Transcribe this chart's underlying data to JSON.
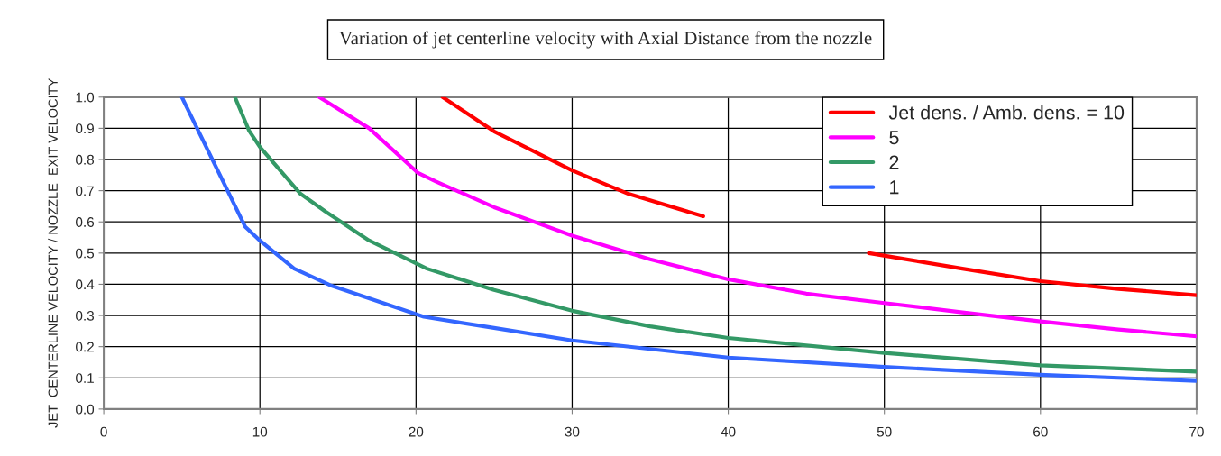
{
  "chart_data": {
    "type": "line",
    "title": "Variation of jet centerline velocity with Axial Distance from the nozzle",
    "ylabel": "JET  CENTERLINE VELOCITY / NOZZLE  EXIT VELOCITY",
    "series": [
      {
        "name": "Jet dens. / Amb. dens. = 10",
        "color": "#ff0000",
        "x": [
          21.7,
          25,
          30,
          33.6,
          38.4,
          43,
          49,
          55,
          60,
          65,
          70
        ],
        "values": [
          1.0,
          0.89,
          0.765,
          0.69,
          0.618,
          null,
          0.5,
          0.45,
          0.41,
          0.385,
          0.365
        ]
      },
      {
        "name": "5",
        "color": "#ff00ff",
        "x": [
          13.8,
          17,
          20.1,
          21.3,
          25,
          30,
          35,
          40,
          45,
          50,
          55,
          60,
          65,
          70
        ],
        "values": [
          1.0,
          0.9,
          0.758,
          0.729,
          0.647,
          0.556,
          0.48,
          0.416,
          0.37,
          0.34,
          0.31,
          0.281,
          0.255,
          0.233
        ]
      },
      {
        "name": "2",
        "color": "#339966",
        "x": [
          8.4,
          9.3,
          10,
          12.6,
          14.2,
          17,
          20.7,
          25,
          30,
          35,
          40,
          50,
          60,
          70
        ],
        "values": [
          1.0,
          0.893,
          0.84,
          0.69,
          0.633,
          0.54,
          0.45,
          0.382,
          0.315,
          0.265,
          0.228,
          0.18,
          0.14,
          0.12
        ]
      },
      {
        "name": "1",
        "color": "#3366ff",
        "x": [
          5.0,
          9.05,
          10,
          12.2,
          14.5,
          20.5,
          25,
          30,
          40,
          50,
          60,
          70
        ],
        "values": [
          1.0,
          0.585,
          0.54,
          0.45,
          0.397,
          0.296,
          0.26,
          0.22,
          0.165,
          0.135,
          0.11,
          0.09
        ]
      }
    ],
    "xlim": [
      0,
      70
    ],
    "xticks": [
      0,
      10,
      20,
      30,
      40,
      50,
      60,
      70
    ],
    "ylim": [
      0.0,
      1.0
    ],
    "yticks": [
      {
        "value": 0,
        "label": "0.0"
      },
      0.1,
      0.2,
      0.3,
      0.4,
      0.5,
      0.6,
      0.7,
      0.8,
      0.9,
      {
        "value": 1,
        "label": "1.0"
      }
    ],
    "grid": true,
    "legend": "top right",
    "marker": "none",
    "line_style": "solid"
  }
}
